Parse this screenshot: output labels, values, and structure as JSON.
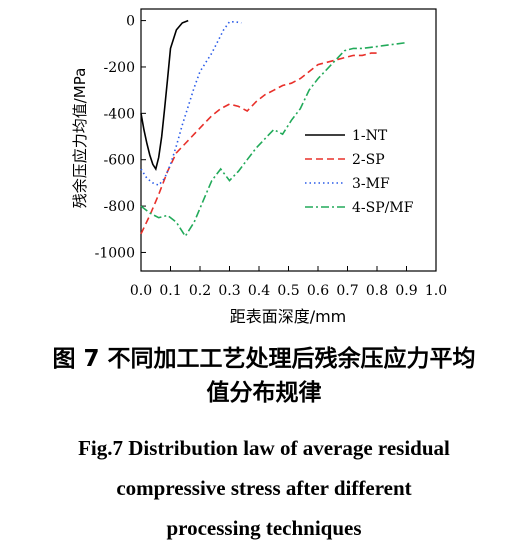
{
  "chart_data": {
    "type": "line",
    "xlabel": "距表面深度/mm",
    "ylabel": "残余压应力均值/MPa",
    "xlim": [
      0.0,
      1.0
    ],
    "ylim": [
      -1080,
      50
    ],
    "xticks": [
      0.0,
      0.1,
      0.2,
      0.3,
      0.4,
      0.5,
      0.6,
      0.7,
      0.8,
      0.9,
      1.0
    ],
    "xtick_labels": [
      "0.0",
      "0.1",
      "0.2",
      "0.3",
      "0.4",
      "0.5",
      "0.6",
      "0.7",
      "0.8",
      "0.9",
      "1.0"
    ],
    "yticks": [
      0,
      -200,
      -400,
      -600,
      -800,
      -1000
    ],
    "ytick_labels": [
      "0",
      "-200",
      "-400",
      "-600",
      "-800",
      "-1000"
    ],
    "legend_position": "right-middle",
    "series": [
      {
        "name": "1-NT",
        "color": "#000000",
        "dash": "solid",
        "x": [
          0.0,
          0.01,
          0.02,
          0.03,
          0.04,
          0.05,
          0.06,
          0.07,
          0.08,
          0.09,
          0.1,
          0.12,
          0.14,
          0.16
        ],
        "y": [
          -400,
          -470,
          -530,
          -580,
          -620,
          -640,
          -590,
          -500,
          -380,
          -250,
          -120,
          -40,
          -10,
          0
        ]
      },
      {
        "name": "2-SP",
        "color": "#e8302a",
        "dash": "dashed",
        "x": [
          0.0,
          0.03,
          0.06,
          0.09,
          0.12,
          0.15,
          0.18,
          0.21,
          0.24,
          0.27,
          0.3,
          0.33,
          0.36,
          0.39,
          0.42,
          0.45,
          0.48,
          0.51,
          0.54,
          0.57,
          0.6,
          0.63,
          0.66,
          0.69,
          0.72,
          0.75,
          0.78,
          0.8
        ],
        "y": [
          -920,
          -840,
          -750,
          -650,
          -570,
          -530,
          -490,
          -450,
          -410,
          -380,
          -360,
          -370,
          -390,
          -350,
          -320,
          -300,
          -280,
          -270,
          -250,
          -220,
          -190,
          -180,
          -170,
          -160,
          -150,
          -150,
          -140,
          -140
        ]
      },
      {
        "name": "3-MF",
        "color": "#2a5be8",
        "dash": "dotted",
        "x": [
          0.0,
          0.02,
          0.04,
          0.06,
          0.08,
          0.1,
          0.12,
          0.14,
          0.16,
          0.18,
          0.2,
          0.22,
          0.24,
          0.26,
          0.28,
          0.3,
          0.32,
          0.34
        ],
        "y": [
          -640,
          -680,
          -700,
          -710,
          -680,
          -620,
          -540,
          -450,
          -370,
          -290,
          -220,
          -180,
          -140,
          -90,
          -40,
          -5,
          -5,
          -10
        ]
      },
      {
        "name": "4-SP/MF",
        "color": "#22aa5a",
        "dash": "dashdot",
        "x": [
          0.0,
          0.03,
          0.06,
          0.09,
          0.12,
          0.15,
          0.18,
          0.21,
          0.24,
          0.27,
          0.3,
          0.33,
          0.36,
          0.39,
          0.42,
          0.45,
          0.48,
          0.51,
          0.54,
          0.57,
          0.6,
          0.63,
          0.66,
          0.69,
          0.72,
          0.75,
          0.78,
          0.81,
          0.84,
          0.87,
          0.9
        ],
        "y": [
          -800,
          -830,
          -850,
          -840,
          -870,
          -930,
          -870,
          -780,
          -690,
          -640,
          -690,
          -650,
          -600,
          -550,
          -510,
          -470,
          -490,
          -430,
          -380,
          -300,
          -250,
          -210,
          -170,
          -130,
          -120,
          -120,
          -115,
          -110,
          -105,
          -100,
          -95
        ]
      }
    ]
  },
  "caption": {
    "zh_line1": "图 7 不同加工工艺处理后残余压应力平均",
    "zh_line2": "值分布规律",
    "en_line1": "Fig.7 Distribution law of average residual",
    "en_line2": "compressive stress after different",
    "en_line3": "processing techniques"
  }
}
